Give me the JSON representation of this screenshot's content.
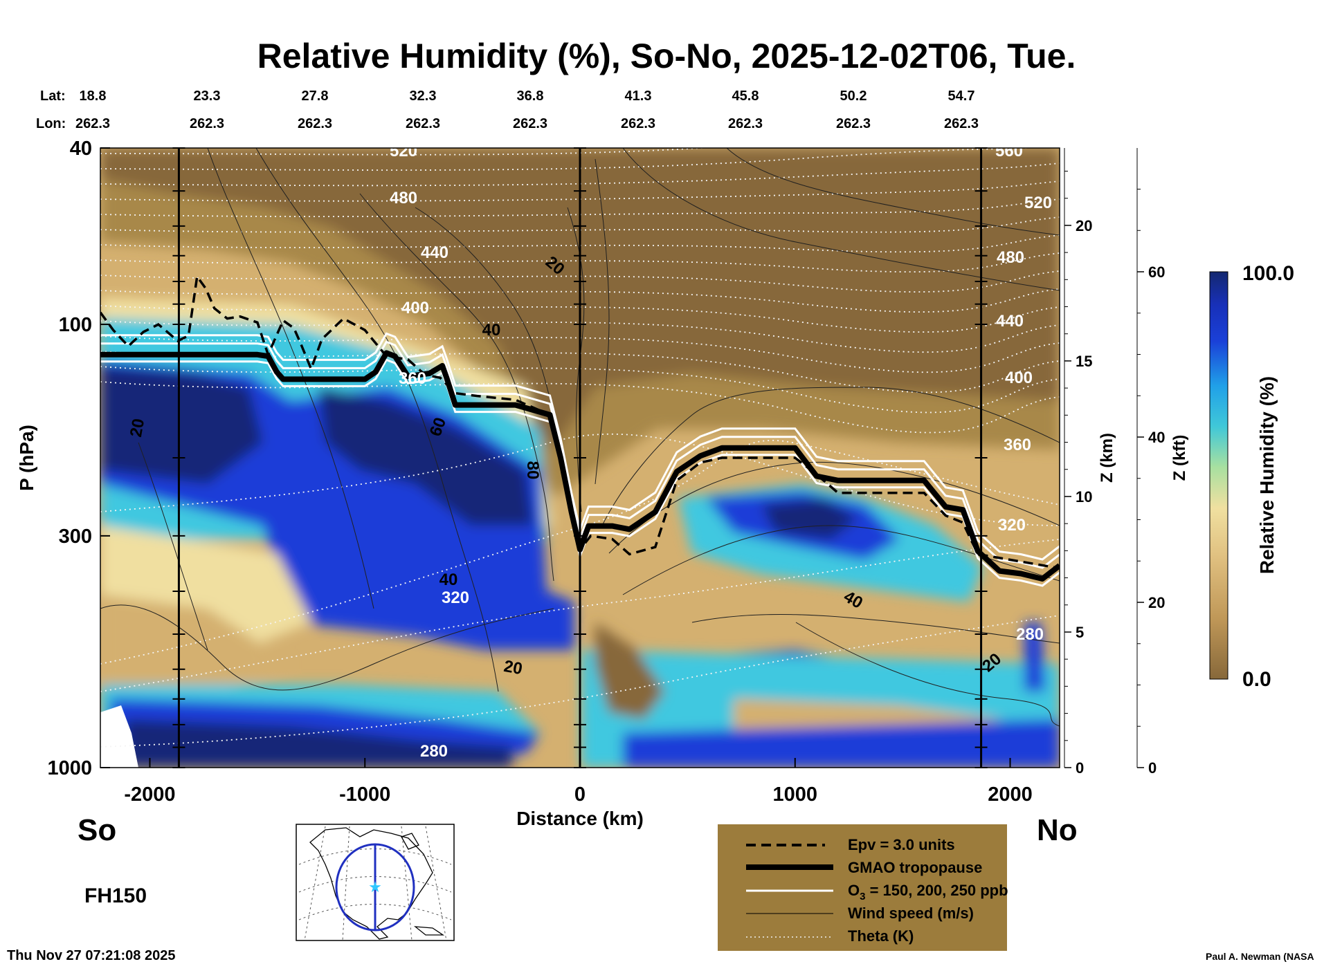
{
  "chart_data": {
    "type": "heatmap",
    "title": "Relative Humidity (%), So-No, 2025-12-02T06, Tue.",
    "xlabel": "Distance (km)",
    "ylabel": "P (hPa)",
    "xlim": [
      -2230,
      2230
    ],
    "ylim": [
      1000,
      40
    ],
    "y_scale": "log",
    "x_ticks": [
      -2000,
      -1000,
      0,
      1000,
      2000
    ],
    "y_ticks": [
      40,
      100,
      300,
      1000
    ],
    "z_km_label": "Z (km)",
    "z_km_ticks": [
      0,
      5,
      10,
      15,
      20
    ],
    "z_kft_label": "Z (kft)",
    "z_kft_ticks": [
      0,
      20,
      40,
      60
    ],
    "lat_label": "Lat:",
    "lon_label": "Lon:",
    "lat": [
      "18.8",
      "23.3",
      "27.8",
      "32.3",
      "36.8",
      "41.3",
      "45.8",
      "50.2",
      "54.7"
    ],
    "lon": [
      "262.3",
      "262.3",
      "262.3",
      "262.3",
      "262.3",
      "262.3",
      "262.3",
      "262.3",
      "262.3"
    ],
    "colorbar": {
      "label": "Relative Humidity (%)",
      "min": "0.0",
      "max": "100.0"
    },
    "tropopause": {
      "x": [
        -2230,
        -1500,
        -1450,
        -1410,
        -1380,
        -1000,
        -950,
        -900,
        -860,
        -800,
        -700,
        -640,
        -620,
        -580,
        -500,
        -300,
        -140,
        -90,
        -40,
        0,
        40,
        150,
        230,
        350,
        450,
        560,
        660,
        800,
        1000,
        1100,
        1200,
        1300,
        1600,
        1700,
        1780,
        1850,
        1950,
        2050,
        2150,
        2230
      ],
      "p": [
        117,
        117,
        118,
        128,
        133,
        133,
        128,
        116,
        118,
        131,
        129,
        124,
        132,
        152,
        152,
        152,
        160,
        200,
        265,
        322,
        285,
        285,
        290,
        265,
        215,
        198,
        190,
        190,
        190,
        220,
        225,
        225,
        225,
        258,
        262,
        325,
        360,
        365,
        375,
        350
      ]
    },
    "epv": {
      "x": [
        -2230,
        -2170,
        -2100,
        -2030,
        -1960,
        -1870,
        -1820,
        -1780,
        -1740,
        -1700,
        -1640,
        -1580,
        -1500,
        -1450,
        -1380,
        -1330,
        -1300,
        -1250,
        -1200,
        -1100,
        -1000,
        -900,
        -800,
        -720,
        -650,
        -580,
        -480,
        -300,
        -140,
        -90,
        -40,
        0,
        50,
        150,
        230,
        350,
        450,
        560,
        660,
        800,
        1000,
        1100,
        1200,
        1300,
        1600,
        1700,
        1780,
        1850,
        2230
      ],
      "p": [
        94,
        103,
        112,
        104,
        100,
        109,
        106,
        78,
        83,
        92,
        97,
        96,
        99,
        117,
        98,
        102,
        110,
        126,
        108,
        97,
        103,
        118,
        120,
        130,
        132,
        143,
        145,
        148,
        160,
        200,
        265,
        322,
        300,
        305,
        330,
        318,
        225,
        205,
        200,
        200,
        200,
        218,
        240,
        240,
        240,
        270,
        280,
        330,
        355
      ]
    },
    "theta_labels": [
      "520",
      "480",
      "440",
      "400",
      "360",
      "320",
      "280",
      "560",
      "520",
      "480",
      "440",
      "400",
      "360",
      "320",
      "280"
    ],
    "wind_labels": [
      "20",
      "40",
      "60",
      "80",
      "40",
      "20",
      "20",
      "40",
      "20"
    ],
    "legend": [
      {
        "style": "dashed",
        "label": "Epv = 3.0 units"
      },
      {
        "style": "thick-black",
        "label": "GMAO tropopause"
      },
      {
        "style": "white",
        "label_main": "O",
        "label_sub": "3",
        "label_rest": " = 150, 200, 250 ppb"
      },
      {
        "style": "thin-black",
        "label": "Wind speed (m/s)"
      },
      {
        "style": "dotted",
        "label": "Theta (K)"
      }
    ],
    "legend_bg": "#9c7c3c",
    "colors": {
      "dry": "#87683a",
      "tan": "#d4b070",
      "cream": "#f0dfa0",
      "green": "#a0e0a0",
      "cyan": "#3cc8e0",
      "blue": "#1a3dd8",
      "navy": "#142878"
    }
  },
  "labels": {
    "south": "So",
    "north": "No",
    "forecast_hour": "FH150",
    "timestamp": "Thu Nov 27 07:21:08 2025",
    "credit": "Paul A. Newman (NASA"
  }
}
